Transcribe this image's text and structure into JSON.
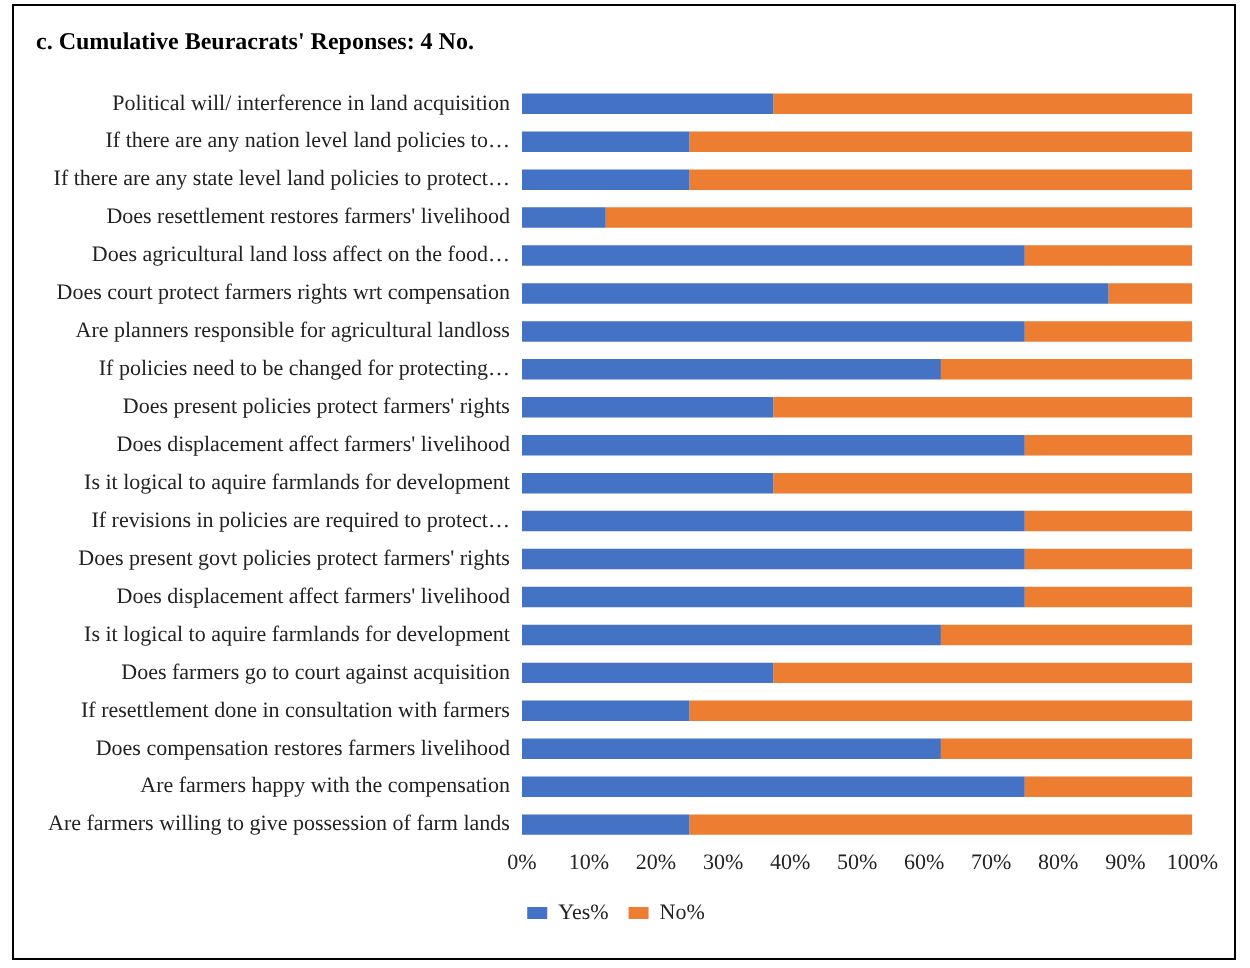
{
  "chart_data": {
    "type": "bar",
    "orientation": "horizontal",
    "stacked": true,
    "title": "c. Cumulative Beuracrats' Reponses: 4 No.",
    "categories": [
      "Political will/ interference in land acquisition",
      "If there are any nation level land policies to…",
      "If there are any state level land policies to protect…",
      "Does resettlement restores farmers' livelihood",
      "Does agricultural land loss affect on the food…",
      "Does court protect farmers rights wrt compensation",
      "Are planners responsible for agricultural landloss",
      "If policies need to be changed for protecting…",
      "Does present policies protect farmers' rights",
      "Does displacement affect farmers' livelihood",
      "Is it logical to aquire farmlands for development",
      "If revisions in policies are required to protect…",
      "Does present govt policies protect farmers' rights",
      "Does displacement affect farmers' livelihood",
      "Is it logical to aquire farmlands for development",
      "Does farmers go to court against acquisition",
      "If resettlement done in consultation with farmers",
      "Does compensation restores farmers livelihood",
      "Are farmers happy with the compensation",
      "Are farmers willing to give possession of farm lands"
    ],
    "series": [
      {
        "name": "Yes%",
        "color": "#4472c4",
        "values": [
          37.5,
          25,
          25,
          12.5,
          75,
          87.5,
          75,
          62.5,
          37.5,
          75,
          37.5,
          75,
          75,
          75,
          62.5,
          37.5,
          25,
          62.5,
          75,
          25
        ]
      },
      {
        "name": "No%",
        "color": "#ed7d31",
        "values": [
          62.5,
          75,
          75,
          87.5,
          25,
          12.5,
          25,
          37.5,
          62.5,
          25,
          62.5,
          25,
          25,
          25,
          37.5,
          62.5,
          75,
          37.5,
          25,
          75
        ]
      }
    ],
    "xlim": [
      0,
      100
    ],
    "xticks": [
      {
        "value": 0,
        "label": "0%"
      },
      {
        "value": 10,
        "label": "10%"
      },
      {
        "value": 20,
        "label": "20%"
      },
      {
        "value": 30,
        "label": "30%"
      },
      {
        "value": 40,
        "label": "40%"
      },
      {
        "value": 50,
        "label": "50%"
      },
      {
        "value": 60,
        "label": "60%"
      },
      {
        "value": 70,
        "label": "70%"
      },
      {
        "value": 80,
        "label": "80%"
      },
      {
        "value": 90,
        "label": "90%"
      },
      {
        "value": 100,
        "label": "100%"
      }
    ],
    "grid": false,
    "legend": "bottom"
  }
}
